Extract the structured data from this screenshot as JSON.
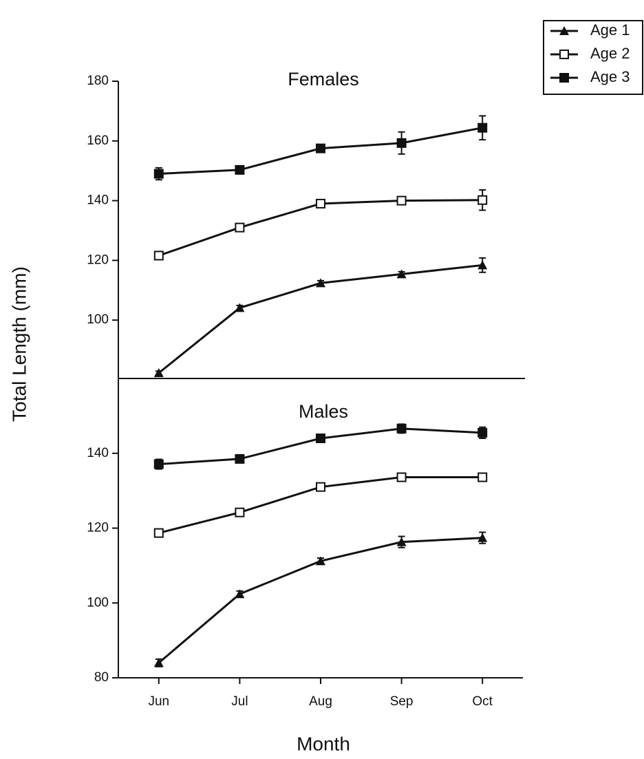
{
  "chart_data": [
    {
      "type": "line",
      "title": "Females",
      "ylabel": "Total Length (mm)",
      "ylim": [
        80,
        180
      ],
      "yticks": [
        100,
        120,
        140,
        160,
        180
      ],
      "series": [
        {
          "name": "Age 1",
          "marker": "triangle",
          "color": "#111111",
          "values": [
            82.3,
            104.1,
            112.4,
            115.4,
            118.4
          ],
          "errors": [
            0.6,
            0.8,
            0.8,
            0.8,
            2.4
          ]
        },
        {
          "name": "Age 2",
          "marker": "open-square",
          "color": "#111111",
          "values": [
            121.6,
            131,
            139,
            140,
            140.2
          ],
          "errors": [
            1.2,
            1.2,
            1,
            0.6,
            3.4
          ]
        },
        {
          "name": "Age 3",
          "marker": "filled-square",
          "color": "#111111",
          "values": [
            149,
            150.3,
            157.5,
            159.3,
            164.4
          ],
          "errors": [
            2,
            1,
            1,
            3.7,
            4
          ]
        }
      ]
    },
    {
      "type": "line",
      "title": "Males",
      "xlabel": "Month",
      "categories": [
        "Jun",
        "Jul",
        "Aug",
        "Sep",
        "Oct"
      ],
      "ylim": [
        80,
        160
      ],
      "yticks": [
        80,
        100,
        120,
        140
      ],
      "series": [
        {
          "name": "Age 1",
          "marker": "triangle",
          "color": "#111111",
          "values": [
            84,
            102.4,
            111.2,
            116.3,
            117.4
          ],
          "errors": [
            1,
            0.8,
            0.8,
            1.5,
            1.5
          ]
        },
        {
          "name": "Age 2",
          "marker": "open-square",
          "color": "#111111",
          "values": [
            118.7,
            124.2,
            131,
            133.6,
            133.6
          ],
          "errors": [
            1,
            0.8,
            0.8,
            1,
            1
          ]
        },
        {
          "name": "Age 3",
          "marker": "filled-square",
          "color": "#111111",
          "values": [
            137.1,
            138.5,
            144,
            146.6,
            145.5
          ],
          "errors": [
            1.3,
            0.8,
            1,
            1.2,
            1.5
          ]
        }
      ]
    }
  ]
}
